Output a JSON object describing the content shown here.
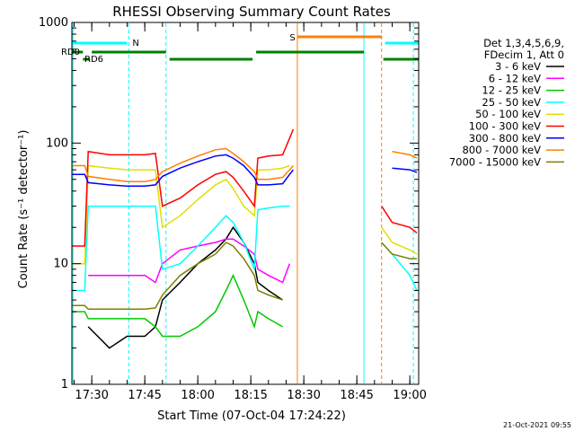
{
  "chart_data": {
    "type": "line",
    "title": "RHESSI Observing Summary Count Rates",
    "xlabel": "Start Time (07-Oct-04 17:24:22)",
    "ylabel": "Count Rate (s⁻¹ detector⁻¹)",
    "y_scale": "log",
    "ylim": [
      1,
      1000
    ],
    "xlim": [
      "17:24:22",
      "19:02:30"
    ],
    "x_ticks": [
      "17:30",
      "17:45",
      "18:00",
      "18:15",
      "18:30",
      "18:45",
      "19:00"
    ],
    "y_ticks": [
      "1",
      "10",
      "100",
      "1000"
    ],
    "legend_header": [
      "Det 1,3,4,5,6,9,",
      "FDecim 1, Att 0"
    ],
    "legend_position": "right",
    "footer_date": "21-Oct-2021 09:55",
    "x_hours": [
      "17:24",
      "17:28",
      "17:29",
      "17:35",
      "17:40",
      "17:45",
      "17:48",
      "17:50",
      "17:55",
      "18:00",
      "18:05",
      "18:08",
      "18:10",
      "18:13",
      "18:16",
      "18:17",
      "18:20",
      "18:24",
      "18:26",
      "18:27",
      "18:28",
      "18:52",
      "18:55",
      "19:00",
      "19:02"
    ],
    "series": [
      {
        "name": "3 - 6 keV",
        "color": "#000000",
        "values": [
          null,
          null,
          3,
          2,
          2.5,
          2.5,
          3,
          5,
          7,
          10,
          13,
          16,
          20,
          15,
          10,
          7,
          6,
          5,
          null,
          null,
          null,
          null,
          null,
          null,
          null
        ]
      },
      {
        "name": "6 - 12 keV",
        "color": "#ff00ff",
        "values": [
          null,
          null,
          8,
          8,
          8,
          8,
          7,
          10,
          13,
          14,
          15,
          16,
          16,
          14,
          12,
          9,
          8,
          7,
          10,
          null,
          null,
          null,
          null,
          null,
          null
        ]
      },
      {
        "name": "12 - 25 keV",
        "color": "#00c800",
        "values": [
          4,
          4,
          3.5,
          3.5,
          3.5,
          3.5,
          3,
          2.5,
          2.5,
          3,
          4,
          6,
          8,
          5,
          3,
          4,
          3.5,
          3,
          null,
          null,
          null,
          null,
          null,
          null,
          null
        ]
      },
      {
        "name": "25 - 50 keV",
        "color": "#00ffff",
        "values": [
          6,
          6,
          30,
          30,
          30,
          30,
          30,
          9,
          10,
          14,
          20,
          25,
          22,
          15,
          9,
          28,
          29,
          30,
          30,
          null,
          null,
          15,
          12,
          8,
          6
        ]
      },
      {
        "name": "50 - 100 keV",
        "color": "#e0e000",
        "values": [
          10,
          10,
          65,
          62,
          60,
          60,
          60,
          20,
          25,
          34,
          45,
          50,
          42,
          30,
          25,
          60,
          60,
          62,
          65,
          null,
          null,
          20,
          15,
          13,
          12
        ]
      },
      {
        "name": "100 - 300 keV",
        "color": "#ff0000",
        "values": [
          14,
          14,
          85,
          80,
          80,
          80,
          82,
          30,
          35,
          45,
          55,
          58,
          52,
          40,
          30,
          75,
          78,
          80,
          110,
          130,
          null,
          30,
          22,
          20,
          18
        ]
      },
      {
        "name": "300 - 800 keV",
        "color": "#0000ff",
        "values": [
          55,
          55,
          47,
          45,
          44,
          44,
          45,
          53,
          62,
          70,
          78,
          80,
          75,
          65,
          52,
          45,
          45,
          46,
          55,
          60,
          null,
          null,
          62,
          60,
          57
        ]
      },
      {
        "name": "800 - 7000 keV",
        "color": "#ff8000",
        "values": [
          65,
          65,
          53,
          50,
          48,
          48,
          50,
          58,
          68,
          78,
          88,
          90,
          82,
          70,
          58,
          50,
          50,
          52,
          60,
          65,
          null,
          null,
          85,
          80,
          75
        ]
      },
      {
        "name": "7000 - 15000 keV",
        "color": "#808000",
        "values": [
          4.5,
          4.5,
          4.2,
          4.2,
          4.2,
          4.2,
          4.3,
          5.5,
          8,
          10,
          12,
          15,
          14,
          11,
          8,
          6,
          5.5,
          5,
          null,
          null,
          null,
          15,
          12,
          11,
          11
        ]
      }
    ],
    "annotations": {
      "night_label": "N",
      "saa_label": "S",
      "rd_labels": [
        "RD0",
        "RD6"
      ]
    }
  }
}
